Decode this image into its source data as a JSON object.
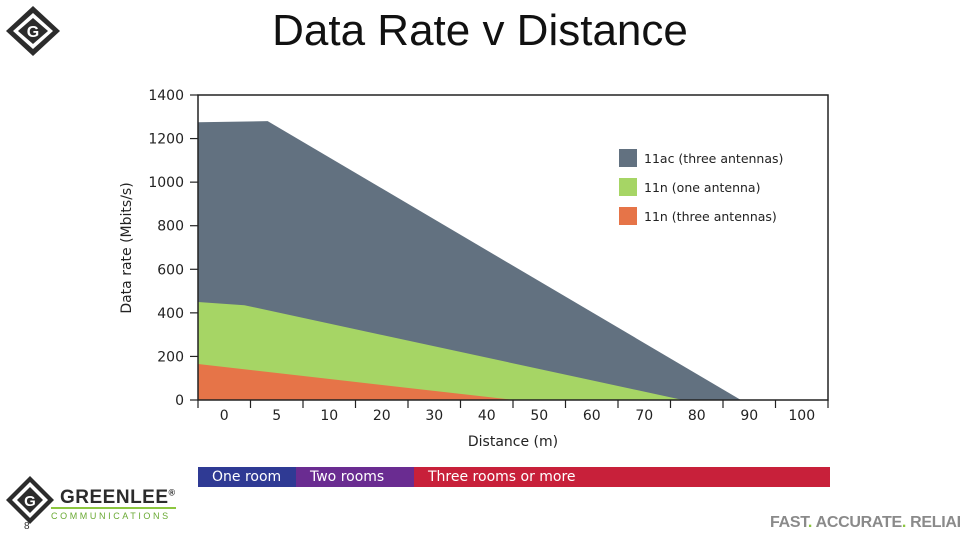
{
  "title": "Data Rate v Distance",
  "slide_number": "8",
  "brand": {
    "name": "GREENLEE",
    "registered": "®",
    "subtitle": "COMMUNICATIONS",
    "logo_letter": "G",
    "tagline_words": [
      "FAST",
      "ACCURATE",
      "RELIABLE"
    ],
    "tagline_dot": ".",
    "colors": {
      "green": "#8cc63f",
      "dark": "#2c2c2c"
    }
  },
  "chart_data": {
    "type": "area",
    "xlabel": "Distance (m)",
    "ylabel": "Data rate (Mbits/s)",
    "xlim": [
      -3.5,
      105
    ],
    "ylim": [
      0,
      1400
    ],
    "x_ticks": [
      0,
      5,
      10,
      20,
      30,
      40,
      50,
      60,
      70,
      80,
      90,
      100
    ],
    "y_ticks": [
      0,
      200,
      400,
      600,
      800,
      1000,
      1200,
      1400
    ],
    "grid": false,
    "legend_position": "right",
    "series": [
      {
        "name": "11ac (three antennas)",
        "color": "#627180",
        "x": [
          -3.5,
          8.5,
          90
        ],
        "y": [
          1275,
          1280,
          0
        ]
      },
      {
        "name": "11n (one antenna)",
        "color": "#a6d565",
        "x": [
          -3.5,
          4.5,
          80
        ],
        "y": [
          450,
          435,
          0
        ]
      },
      {
        "name": "11n (three antennas)",
        "color": "#e67448",
        "x": [
          -3.5,
          51
        ],
        "y": [
          165,
          0
        ]
      }
    ],
    "room_ranges": [
      {
        "label": "One room",
        "color": "#2f3a94"
      },
      {
        "label": "Two rooms",
        "color": "#6a2c91"
      },
      {
        "label": "Three rooms or more",
        "color": "#c8203a"
      }
    ]
  }
}
